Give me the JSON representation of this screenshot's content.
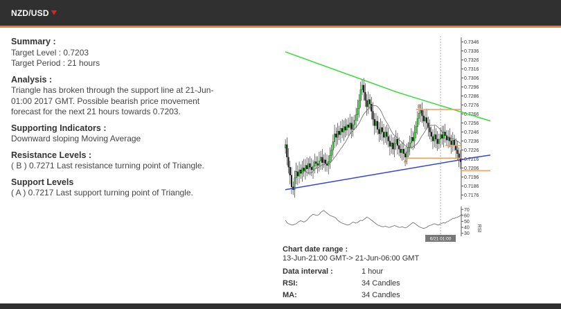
{
  "header": {
    "title": "NZD/USD",
    "direction": "down",
    "accent_color": "#f07a30",
    "arrow_color": "#e2231a"
  },
  "summary": {
    "heading": "Summary :",
    "target_level": "Target Level : 0.7203",
    "target_period": "Target Period : 21 hours"
  },
  "analysis": {
    "heading": "Analysis :",
    "text": "Triangle has broken through the support line at 21-Jun-01:00 2017 GMT. Possible bearish price movement forecast for the next 21 hours towards 0.7203."
  },
  "indicators": {
    "heading": "Supporting Indicators :",
    "text": "Downward sloping Moving Average"
  },
  "resistance": {
    "heading": "Resistance Levels :",
    "text": "( B ) 0.7271 Last resistance turning point of Triangle."
  },
  "support": {
    "heading": "Support Levels",
    "text": "( A ) 0.7217 Last support turning point of Triangle."
  },
  "meta": {
    "range_label": "Chart date range :",
    "range_value": "13-Jun-21:00 GMT-> 21-Jun-06:00 GMT",
    "interval_label": "Data interval :",
    "interval_value": "1 hour",
    "rsi_label": "RSI:",
    "rsi_value": "34 Candles",
    "ma_label": "MA:",
    "ma_value": "34 Candles"
  },
  "chart_data": {
    "type": "candlestick",
    "price_ticks": [
      "0.7346",
      "0.7336",
      "0.7326",
      "0.7316",
      "0.7306",
      "0.7296",
      "0.7286",
      "0.7276",
      "0.7266",
      "0.7256",
      "0.7246",
      "0.7236",
      "0.7226",
      "0.7216",
      "0.7206",
      "0.7196",
      "0.7186",
      "0.7176"
    ],
    "price_range": [
      0.7171,
      0.7351
    ],
    "rsi_ticks": [
      "70",
      "60",
      "50",
      "40",
      "30"
    ],
    "rsi_range": [
      25,
      75
    ],
    "rsi_axis_label": "RSI",
    "current_time_label": "6/21 01:00",
    "labels": {
      "resistance_point": "B",
      "support_point": "A"
    },
    "colors": {
      "resistance_line": "#33dd33",
      "support_line": "#3344dd",
      "level_lines": "#f49a5a",
      "up_candle": "#33cc33",
      "down_candle": "#111111",
      "ma": "#666666",
      "rsi": "#666666"
    },
    "resistance_line": [
      [
        0,
        0.7335
      ],
      [
        73,
        0.729
      ],
      [
        172,
        0.7238
      ]
    ],
    "support_line": [
      [
        0,
        0.7182
      ],
      [
        124,
        0.7218
      ],
      [
        172,
        0.723
      ]
    ],
    "level_b": 0.7271,
    "level_a": 0.7217,
    "level_upper": 0.7231,
    "target": 0.7203,
    "forecast": [
      [
        172,
        0.723
      ],
      [
        185,
        0.7203
      ]
    ],
    "closes": [
      0.7232,
      0.7218,
      0.7207,
      0.7198,
      0.7185,
      0.7182,
      0.7195,
      0.7202,
      0.7197,
      0.7204,
      0.72,
      0.7206,
      0.7203,
      0.7209,
      0.7205,
      0.7211,
      0.7207,
      0.7204,
      0.7208,
      0.7213,
      0.7211,
      0.7209,
      0.7214,
      0.7218,
      0.7212,
      0.7215,
      0.7211,
      0.7209,
      0.7213,
      0.722,
      0.7226,
      0.7235,
      0.7244,
      0.724,
      0.7247,
      0.7243,
      0.725,
      0.7246,
      0.7252,
      0.7248,
      0.7254,
      0.7251,
      0.7256,
      0.7249,
      0.7254,
      0.7259,
      0.7265,
      0.7272,
      0.7281,
      0.7293,
      0.7298,
      0.729,
      0.7281,
      0.7274,
      0.7282,
      0.7277,
      0.7269,
      0.726,
      0.7253,
      0.7258,
      0.7249,
      0.7244,
      0.7251,
      0.7246,
      0.724,
      0.7246,
      0.7241,
      0.7236,
      0.723,
      0.7234,
      0.7227,
      0.7233,
      0.7238,
      0.7231,
      0.7227,
      0.7223,
      0.7227,
      0.7222,
      0.7218,
      0.7224,
      0.7229,
      0.7234,
      0.724,
      0.7236,
      0.7245,
      0.7252,
      0.7261,
      0.7267,
      0.727,
      0.7264,
      0.7258,
      0.7262,
      0.7256,
      0.7251,
      0.7246,
      0.7241,
      0.7236,
      0.7243,
      0.7238,
      0.7233,
      0.7238,
      0.7243,
      0.7239,
      0.7246,
      0.7242,
      0.7237,
      0.724,
      0.7236,
      0.7232,
      0.7237,
      0.7231,
      0.7226,
      0.7222,
      0.7217,
      0.7213
    ],
    "rsi": [
      52,
      48,
      46,
      45,
      44,
      44,
      45,
      46,
      48,
      50,
      51,
      50,
      49,
      50,
      52,
      55,
      58,
      60,
      62,
      61,
      60,
      60,
      62,
      65,
      67,
      68,
      66,
      64,
      62,
      60,
      59,
      58,
      57,
      55,
      52,
      50,
      48,
      47,
      46,
      45,
      44,
      44,
      45,
      47,
      49,
      48,
      47,
      48,
      50,
      52,
      51,
      53,
      55,
      57,
      56,
      54,
      52,
      50,
      48,
      46,
      44,
      43,
      42,
      41,
      41,
      42,
      41,
      40,
      40,
      41,
      42,
      43,
      42,
      41,
      40,
      40,
      41,
      40,
      39,
      40,
      42,
      44,
      46,
      48,
      47,
      45,
      43,
      41,
      40,
      39,
      38,
      39,
      40,
      42,
      43,
      44,
      45,
      46,
      45,
      44,
      44,
      46,
      47,
      48,
      47,
      49,
      50,
      52,
      53,
      55,
      55,
      56,
      57,
      58,
      60,
      62
    ]
  }
}
